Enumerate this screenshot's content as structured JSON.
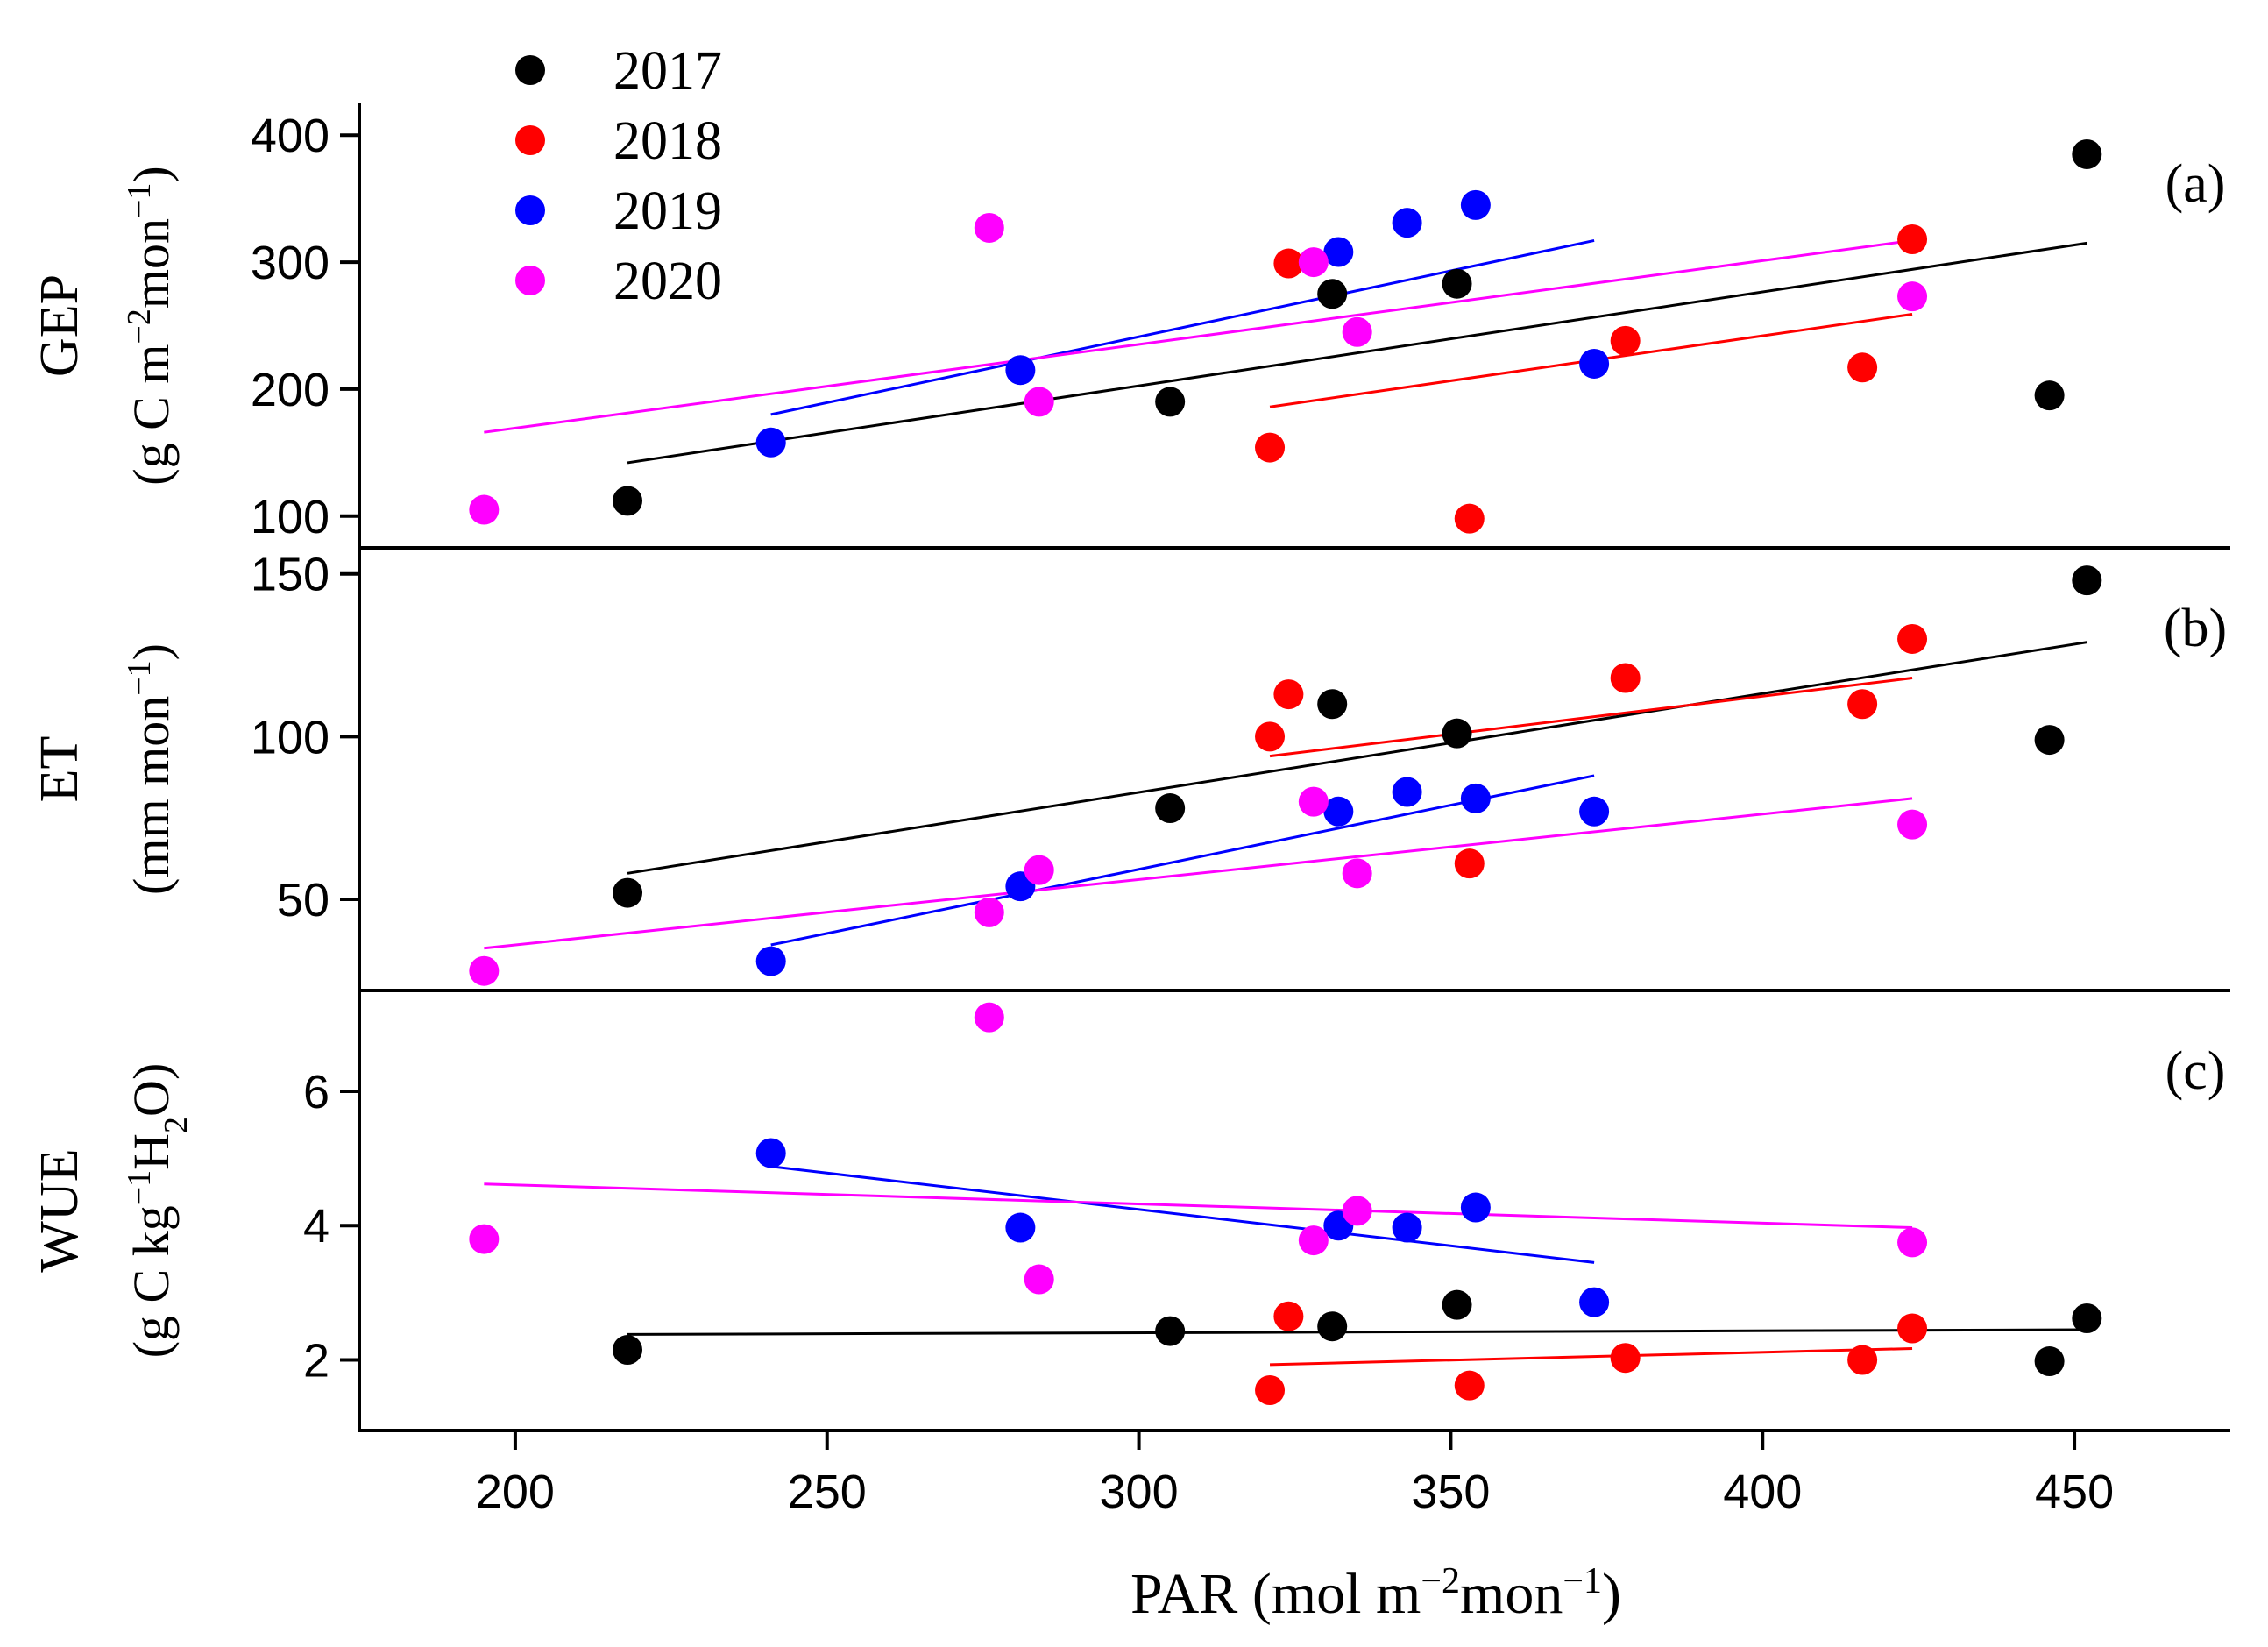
{
  "chart_data": {
    "type": "scatter",
    "x_axis": {
      "label_base": "PAR (mol m",
      "label_sup1": "−2",
      "label_mid": "mon",
      "label_sup2": "−1",
      "label_end": ")",
      "range": [
        175,
        475
      ],
      "ticks": [
        200,
        250,
        300,
        350,
        400,
        450
      ]
    },
    "legend": [
      {
        "name": "2017",
        "color": "#000000"
      },
      {
        "name": "2018",
        "color": "#ff0000"
      },
      {
        "name": "2019",
        "color": "#0000ff"
      },
      {
        "name": "2020",
        "color": "#ff00ff"
      }
    ],
    "panels": [
      {
        "tag": "(a)",
        "ylabel_main": "GEP",
        "ylabel_unit": {
          "pre": "(g C m",
          "sup1": "−2",
          "mid": "mon",
          "sup2": "−1",
          "post": ")"
        },
        "ylim": [
          75,
          425
        ],
        "yticks": [
          100,
          200,
          300,
          400
        ],
        "series": [
          {
            "name": "2017",
            "points": [
              [
                218,
                112
              ],
              [
                305,
                190
              ],
              [
                331,
                275
              ],
              [
                351,
                283
              ],
              [
                446,
                195
              ],
              [
                452,
                385
              ]
            ],
            "fit": [
              [
                218,
                142
              ],
              [
                452,
                315
              ]
            ]
          },
          {
            "name": "2018",
            "points": [
              [
                321,
                154
              ],
              [
                324,
                299
              ],
              [
                353,
                98
              ],
              [
                378,
                238
              ],
              [
                416,
                217
              ],
              [
                424,
                318
              ]
            ],
            "fit": [
              [
                321,
                186
              ],
              [
                424,
                259
              ]
            ]
          },
          {
            "name": "2019",
            "points": [
              [
                241,
                158
              ],
              [
                281,
                215
              ],
              [
                332,
                308
              ],
              [
                343,
                331
              ],
              [
                354,
                345
              ],
              [
                373,
                220
              ]
            ],
            "fit": [
              [
                241,
                180
              ],
              [
                373,
                317
              ]
            ]
          },
          {
            "name": "2020",
            "points": [
              [
                195,
                105
              ],
              [
                276,
                327
              ],
              [
                284,
                190
              ],
              [
                328,
                300
              ],
              [
                335,
                245
              ],
              [
                424,
                273
              ]
            ],
            "fit": [
              [
                195,
                166
              ],
              [
                424,
                317
              ]
            ]
          }
        ]
      },
      {
        "tag": "(b)",
        "ylabel_main": "ET",
        "ylabel_unit": {
          "pre": "(mm mon",
          "sup1": "−1",
          "mid": "",
          "sup2": "",
          "post": ")"
        },
        "ylim": [
          22,
          158
        ],
        "yticks": [
          50,
          100,
          150
        ],
        "series": [
          {
            "name": "2017",
            "points": [
              [
                218,
                52
              ],
              [
                305,
                78
              ],
              [
                331,
                110
              ],
              [
                351,
                101
              ],
              [
                446,
                99
              ],
              [
                452,
                148
              ]
            ],
            "fit": [
              [
                218,
                58
              ],
              [
                452,
                129
              ]
            ]
          },
          {
            "name": "2018",
            "points": [
              [
                321,
                100
              ],
              [
                324,
                113
              ],
              [
                353,
                61
              ],
              [
                378,
                118
              ],
              [
                416,
                110
              ],
              [
                424,
                130
              ]
            ],
            "fit": [
              [
                321,
                94
              ],
              [
                424,
                118
              ]
            ]
          },
          {
            "name": "2019",
            "points": [
              [
                241,
                31
              ],
              [
                281,
                54
              ],
              [
                332,
                77
              ],
              [
                343,
                83
              ],
              [
                354,
                81
              ],
              [
                373,
                77
              ]
            ],
            "fit": [
              [
                241,
                36
              ],
              [
                373,
                88
              ]
            ]
          },
          {
            "name": "2020",
            "points": [
              [
                195,
                28
              ],
              [
                276,
                46
              ],
              [
                284,
                59
              ],
              [
                328,
                80
              ],
              [
                335,
                58
              ],
              [
                424,
                73
              ]
            ],
            "fit": [
              [
                195,
                35
              ],
              [
                424,
                81
              ]
            ]
          }
        ]
      },
      {
        "tag": "(c)",
        "ylabel_main": "WUE",
        "ylabel_unit": {
          "pre": "(g C kg",
          "sup1": "−1",
          "mid": "H",
          "sub": "2",
          "post": "O)"
        },
        "ylim": [
          0.95,
          7.5
        ],
        "yticks": [
          2,
          4,
          6
        ],
        "series": [
          {
            "name": "2017",
            "points": [
              [
                218,
                2.15
              ],
              [
                305,
                2.43
              ],
              [
                331,
                2.5
              ],
              [
                351,
                2.82
              ],
              [
                446,
                1.98
              ],
              [
                452,
                2.62
              ]
            ],
            "fit": [
              [
                218,
                2.38
              ],
              [
                452,
                2.45
              ]
            ]
          },
          {
            "name": "2018",
            "points": [
              [
                321,
                1.55
              ],
              [
                324,
                2.65
              ],
              [
                353,
                1.62
              ],
              [
                378,
                2.03
              ],
              [
                416,
                2.0
              ],
              [
                424,
                2.47
              ]
            ],
            "fit": [
              [
                321,
                1.93
              ],
              [
                424,
                2.17
              ]
            ]
          },
          {
            "name": "2019",
            "points": [
              [
                241,
                5.08
              ],
              [
                281,
                3.97
              ],
              [
                332,
                4.0
              ],
              [
                343,
                3.97
              ],
              [
                354,
                4.27
              ],
              [
                373,
                2.86
              ]
            ],
            "fit": [
              [
                241,
                4.88
              ],
              [
                373,
                3.45
              ]
            ]
          },
          {
            "name": "2020",
            "points": [
              [
                195,
                3.8
              ],
              [
                276,
                7.1
              ],
              [
                284,
                3.2
              ],
              [
                328,
                3.78
              ],
              [
                335,
                4.22
              ],
              [
                424,
                3.75
              ]
            ],
            "fit": [
              [
                195,
                4.62
              ],
              [
                424,
                3.97
              ]
            ]
          }
        ]
      }
    ]
  }
}
